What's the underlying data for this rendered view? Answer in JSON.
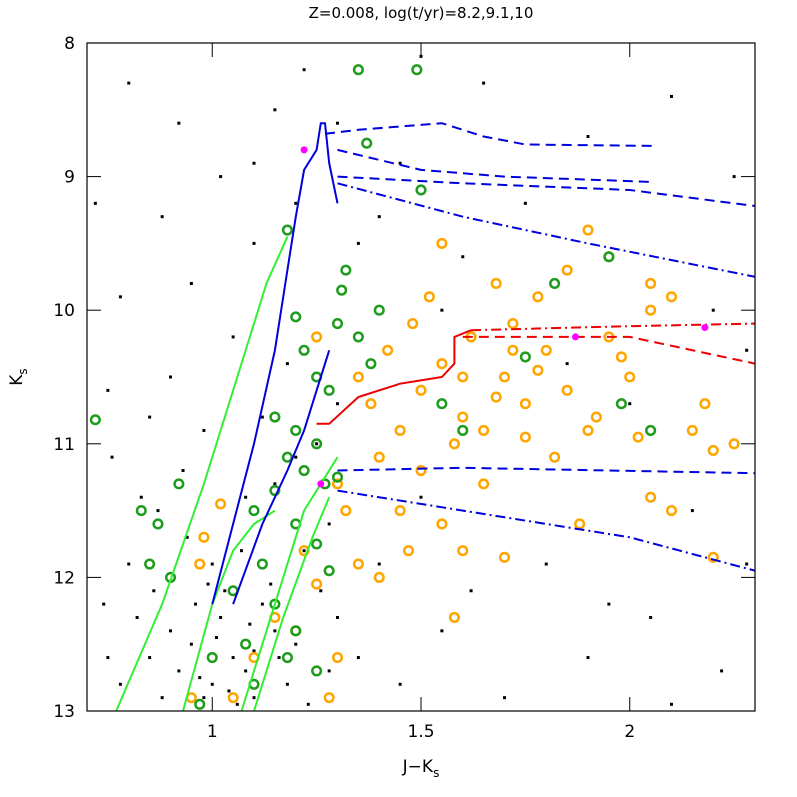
{
  "chart_data": {
    "type": "scatter",
    "title": "Z=0.008,  log(t/yr)=8.2,9.1,10",
    "xlabel": "J−K",
    "xlabel_sub": "s",
    "ylabel": "K",
    "ylabel_sub": "s",
    "xlim": [
      0.7,
      2.3
    ],
    "ylim": [
      13,
      8
    ],
    "y_inverted": true,
    "xticks": [
      1,
      1.5,
      2
    ],
    "yticks": [
      8,
      9,
      10,
      11,
      12,
      13
    ],
    "series": [
      {
        "color": "#000000",
        "marker": "square",
        "x": [
          1.0,
          1.05,
          1.1,
          0.95,
          1.02,
          1.08,
          1.15,
          0.98,
          1.12,
          1.06,
          0.92,
          1.18,
          1.2,
          1.03,
          0.9,
          0.85,
          0.88,
          1.1,
          1.14,
          0.96,
          1.0,
          1.07,
          0.94,
          0.82,
          0.78,
          0.75,
          0.8,
          0.87,
          0.93,
          0.98,
          0.9,
          0.85,
          1.05,
          0.95,
          1.1,
          0.88,
          0.78,
          0.75,
          1.02,
          0.92,
          0.8,
          1.15,
          1.2,
          1.22,
          1.3,
          1.1,
          0.72,
          1.35,
          1.4,
          1.45,
          1.6,
          1.75,
          1.9,
          2.1,
          2.25,
          2.2,
          2.0,
          2.15,
          2.28,
          2.05,
          1.9,
          1.7,
          1.55,
          1.45,
          1.35,
          1.62,
          1.8,
          2.22,
          2.1,
          1.95,
          1.5,
          1.4,
          1.3,
          1.28,
          1.2,
          1.15,
          1.25,
          1.3,
          1.18,
          1.12,
          1.08,
          1.22,
          1.26,
          1.16,
          1.23,
          1.28,
          0.97,
          1.01,
          1.09,
          1.04,
          0.99,
          0.86,
          0.83,
          0.76,
          0.74,
          1.55,
          1.85,
          2.28,
          1.65,
          1.5
        ],
        "y": [
          12.8,
          12.6,
          12.9,
          12.5,
          12.3,
          12.7,
          12.4,
          12.9,
          12.2,
          12.95,
          12.7,
          12.8,
          12.5,
          12.1,
          12.4,
          12.6,
          12.9,
          12.55,
          12.05,
          12.2,
          11.9,
          11.8,
          11.7,
          12.3,
          12.8,
          12.6,
          11.9,
          11.5,
          11.2,
          10.9,
          10.5,
          10.8,
          10.2,
          9.8,
          9.5,
          9.3,
          9.9,
          10.6,
          9.0,
          8.6,
          8.3,
          8.5,
          9.2,
          8.2,
          8.6,
          8.9,
          9.2,
          9.5,
          9.3,
          8.9,
          9.6,
          9.2,
          8.7,
          8.4,
          9.0,
          10.0,
          10.7,
          11.5,
          11.9,
          12.3,
          12.6,
          12.9,
          12.4,
          12.8,
          12.6,
          12.1,
          11.9,
          12.7,
          12.95,
          12.2,
          11.4,
          11.9,
          12.3,
          11.6,
          11.1,
          11.3,
          11.0,
          10.7,
          10.4,
          10.8,
          11.4,
          11.8,
          12.1,
          12.6,
          12.95,
          12.7,
          12.75,
          12.45,
          12.35,
          12.85,
          12.05,
          12.1,
          11.4,
          11.1,
          12.2,
          10.0,
          10.4,
          10.3,
          8.3,
          8.1
        ]
      },
      {
        "color": "#ffa500",
        "marker": "ring",
        "x": [
          1.5,
          1.6,
          1.55,
          1.7,
          1.65,
          1.75,
          1.8,
          1.45,
          1.4,
          1.5,
          1.58,
          1.62,
          1.72,
          1.85,
          1.9,
          1.95,
          2.0,
          2.05,
          2.1,
          1.85,
          1.78,
          1.68,
          1.95,
          1.9,
          1.55,
          1.75,
          1.82,
          1.65,
          1.55,
          1.6,
          1.7,
          1.45,
          1.38,
          1.42,
          1.35,
          1.48,
          1.52,
          2.15,
          2.18,
          2.2,
          2.25,
          2.05,
          2.1,
          2.2,
          1.88,
          1.25,
          1.3,
          1.32,
          1.22,
          1.25,
          1.35,
          1.15,
          1.1,
          1.05,
          0.95,
          1.2,
          1.28,
          1.4,
          1.47,
          1.58,
          1.3,
          0.98,
          0.97,
          1.02,
          2.05,
          1.92,
          1.78,
          1.68,
          1.6,
          1.72,
          2.02,
          1.98
        ],
        "y": [
          10.6,
          10.8,
          10.4,
          10.5,
          10.9,
          10.7,
          10.3,
          10.9,
          11.1,
          11.2,
          11.0,
          10.2,
          10.1,
          10.6,
          10.9,
          10.2,
          10.5,
          10.0,
          9.9,
          9.7,
          9.9,
          9.8,
          9.6,
          9.4,
          9.5,
          10.95,
          11.1,
          11.3,
          11.6,
          11.8,
          11.85,
          11.5,
          10.7,
          10.3,
          10.5,
          10.1,
          9.9,
          10.9,
          10.7,
          11.05,
          11.0,
          11.4,
          11.5,
          11.85,
          11.6,
          10.2,
          11.3,
          11.5,
          11.8,
          12.05,
          11.9,
          12.3,
          12.6,
          12.9,
          12.9,
          12.4,
          12.9,
          12.0,
          11.8,
          12.3,
          12.6,
          11.7,
          11.9,
          11.45,
          9.8,
          10.8,
          10.45,
          10.65,
          10.5,
          10.3,
          10.95,
          10.35
        ]
      },
      {
        "color": "#1e9c1e",
        "marker": "ring",
        "x": [
          1.35,
          1.49,
          1.37,
          1.5,
          1.18,
          1.32,
          1.31,
          1.3,
          1.2,
          1.22,
          1.25,
          1.28,
          1.15,
          1.2,
          1.25,
          1.18,
          1.22,
          1.27,
          1.15,
          1.3,
          1.1,
          1.2,
          1.25,
          1.12,
          1.28,
          1.05,
          1.15,
          1.2,
          1.08,
          1.18,
          1.25,
          1.0,
          1.1,
          0.97,
          0.9,
          0.85,
          0.92,
          0.87,
          0.72,
          0.83,
          1.35,
          1.38,
          1.4,
          1.75,
          1.82,
          1.95,
          2.05,
          1.98,
          1.55,
          1.6
        ],
        "y": [
          8.2,
          8.2,
          8.75,
          9.1,
          9.4,
          9.7,
          9.85,
          10.1,
          10.05,
          10.3,
          10.5,
          10.6,
          10.8,
          10.9,
          11.0,
          11.1,
          11.2,
          11.3,
          11.35,
          11.25,
          11.5,
          11.6,
          11.75,
          11.9,
          11.95,
          12.1,
          12.2,
          12.4,
          12.5,
          12.6,
          12.7,
          12.6,
          12.8,
          12.95,
          12.0,
          11.9,
          11.3,
          11.6,
          10.82,
          11.5,
          10.2,
          10.4,
          10.0,
          10.35,
          9.8,
          9.6,
          10.9,
          10.7,
          10.7,
          10.9
        ]
      },
      {
        "color": "#33ee33",
        "mode": "line",
        "style": "solid",
        "x": [
          0.77,
          0.88,
          0.98,
          1.06,
          1.13,
          1.18
        ],
        "y": [
          13.0,
          12.2,
          11.3,
          10.5,
          9.8,
          9.45
        ]
      },
      {
        "color": "#33ee33",
        "mode": "line",
        "style": "solid",
        "x": [
          0.93,
          1.0,
          1.05,
          1.1,
          1.15
        ],
        "y": [
          13.0,
          12.2,
          11.8,
          11.6,
          11.5
        ]
      },
      {
        "color": "#33ee33",
        "mode": "line",
        "style": "solid",
        "x": [
          1.07,
          1.15,
          1.22,
          1.27,
          1.3
        ],
        "y": [
          13.0,
          12.2,
          11.5,
          11.25,
          11.1
        ]
      },
      {
        "color": "#33ee33",
        "mode": "line",
        "style": "solid",
        "x": [
          1.1,
          1.17,
          1.24,
          1.28
        ],
        "y": [
          13.0,
          12.3,
          11.7,
          11.4
        ]
      },
      {
        "color": "#0000dd",
        "mode": "line",
        "style": "solid",
        "x": [
          1.0,
          1.05,
          1.1,
          1.15,
          1.18,
          1.2,
          1.22,
          1.25,
          1.26,
          1.27,
          1.28,
          1.3
        ],
        "y": [
          12.2,
          11.6,
          11.0,
          10.3,
          9.7,
          9.3,
          8.95,
          8.8,
          8.6,
          8.6,
          8.9,
          9.2
        ]
      },
      {
        "color": "#0000dd",
        "mode": "line",
        "style": "dashed",
        "x": [
          1.27,
          1.35,
          1.55,
          1.65,
          1.75,
          2.06
        ],
        "y": [
          8.68,
          8.65,
          8.6,
          8.7,
          8.76,
          8.77
        ]
      },
      {
        "color": "#0000dd",
        "mode": "line",
        "style": "dashed",
        "x": [
          1.3,
          1.5,
          1.7,
          2.05
        ],
        "y": [
          8.8,
          8.95,
          9.0,
          9.04
        ]
      },
      {
        "color": "#0000dd",
        "mode": "line",
        "style": "dashed",
        "x": [
          1.3,
          1.6,
          2.0,
          2.3
        ],
        "y": [
          9.0,
          9.05,
          9.1,
          9.22
        ]
      },
      {
        "color": "#0000dd",
        "mode": "line",
        "style": "dashdot",
        "x": [
          1.3,
          1.6,
          1.9,
          2.3
        ],
        "y": [
          9.05,
          9.3,
          9.5,
          9.75
        ]
      },
      {
        "color": "#0000dd",
        "mode": "line",
        "style": "solid",
        "x": [
          1.05,
          1.12,
          1.18,
          1.22,
          1.25,
          1.28
        ],
        "y": [
          12.2,
          11.6,
          11.2,
          10.9,
          10.6,
          10.3
        ]
      },
      {
        "color": "#0000dd",
        "mode": "line",
        "style": "dashed",
        "x": [
          1.3,
          1.6,
          2.3
        ],
        "y": [
          11.2,
          11.18,
          11.22
        ]
      },
      {
        "color": "#0000dd",
        "mode": "line",
        "style": "dashdot",
        "x": [
          1.3,
          1.6,
          2.0,
          2.3
        ],
        "y": [
          11.35,
          11.5,
          11.7,
          11.95
        ]
      },
      {
        "color": "#ee0000",
        "mode": "line",
        "style": "solid",
        "x": [
          1.25,
          1.28,
          1.35,
          1.45,
          1.55,
          1.58,
          1.58,
          1.62
        ],
        "y": [
          10.85,
          10.85,
          10.65,
          10.55,
          10.5,
          10.4,
          10.2,
          10.15
        ]
      },
      {
        "color": "#ee0000",
        "mode": "line",
        "style": "dashdot",
        "x": [
          1.62,
          2.0,
          2.3
        ],
        "y": [
          10.15,
          10.12,
          10.1
        ]
      },
      {
        "color": "#ee0000",
        "mode": "line",
        "style": "dashed",
        "x": [
          1.6,
          2.0,
          2.3
        ],
        "y": [
          10.2,
          10.2,
          10.4
        ]
      },
      {
        "color": "#ff00ff",
        "marker": "dot",
        "x": [
          1.22,
          1.26,
          1.87,
          2.18
        ],
        "y": [
          8.8,
          11.3,
          10.2,
          10.13
        ]
      }
    ]
  }
}
